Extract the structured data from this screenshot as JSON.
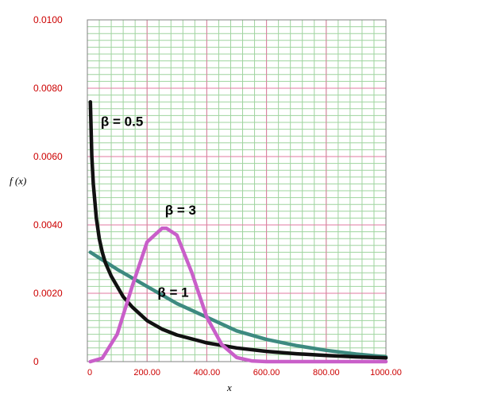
{
  "chart_data": {
    "type": "line",
    "xlabel": "x",
    "ylabel": "f (x)",
    "xlim": [
      0,
      1000
    ],
    "ylim": [
      0,
      0.01
    ],
    "x_ticks": [
      "0",
      "200.00",
      "400.00",
      "600.00",
      "800.00",
      "1000.00"
    ],
    "y_ticks": [
      "0",
      "0.0020",
      "0.0040",
      "0.0060",
      "0.0080",
      "0.0100"
    ],
    "grid": true,
    "series": [
      {
        "name": "β = 0.5",
        "color": "#111111",
        "x": [
          10,
          15,
          20,
          30,
          40,
          50,
          60,
          80,
          100,
          120,
          150,
          200,
          250,
          300,
          400,
          500,
          600,
          700,
          800,
          900,
          1000
        ],
        "y": [
          0.0076,
          0.006,
          0.0052,
          0.0042,
          0.0036,
          0.0032,
          0.0029,
          0.0025,
          0.0022,
          0.0019,
          0.0016,
          0.0012,
          0.00095,
          0.00078,
          0.00055,
          0.0004,
          0.0003,
          0.00023,
          0.00018,
          0.00014,
          0.00011
        ]
      },
      {
        "name": "β = 1",
        "color": "#3d8a80",
        "x": [
          10,
          100,
          200,
          300,
          400,
          500,
          600,
          700,
          800,
          900,
          1000
        ],
        "y": [
          0.0032,
          0.0027,
          0.0022,
          0.0017,
          0.0013,
          0.0009,
          0.00065,
          0.00047,
          0.00033,
          0.00022,
          0.00014
        ]
      },
      {
        "name": "β = 3",
        "color": "#c95fc9",
        "x": [
          10,
          50,
          100,
          150,
          200,
          250,
          265,
          300,
          350,
          400,
          450,
          500,
          550,
          600,
          1000
        ],
        "y": [
          0.0,
          0.0001,
          0.0008,
          0.0022,
          0.0035,
          0.0039,
          0.0039,
          0.0037,
          0.0026,
          0.0013,
          0.0005,
          0.00012,
          2e-05,
          0.0,
          0.0
        ]
      }
    ],
    "annotations": [
      {
        "text": "β = 0.5",
        "x": 45,
        "y": 0.0069
      },
      {
        "text": "β = 3",
        "x": 260,
        "y": 0.0043
      },
      {
        "text": "β = 1",
        "x": 235,
        "y": 0.0019
      }
    ]
  }
}
